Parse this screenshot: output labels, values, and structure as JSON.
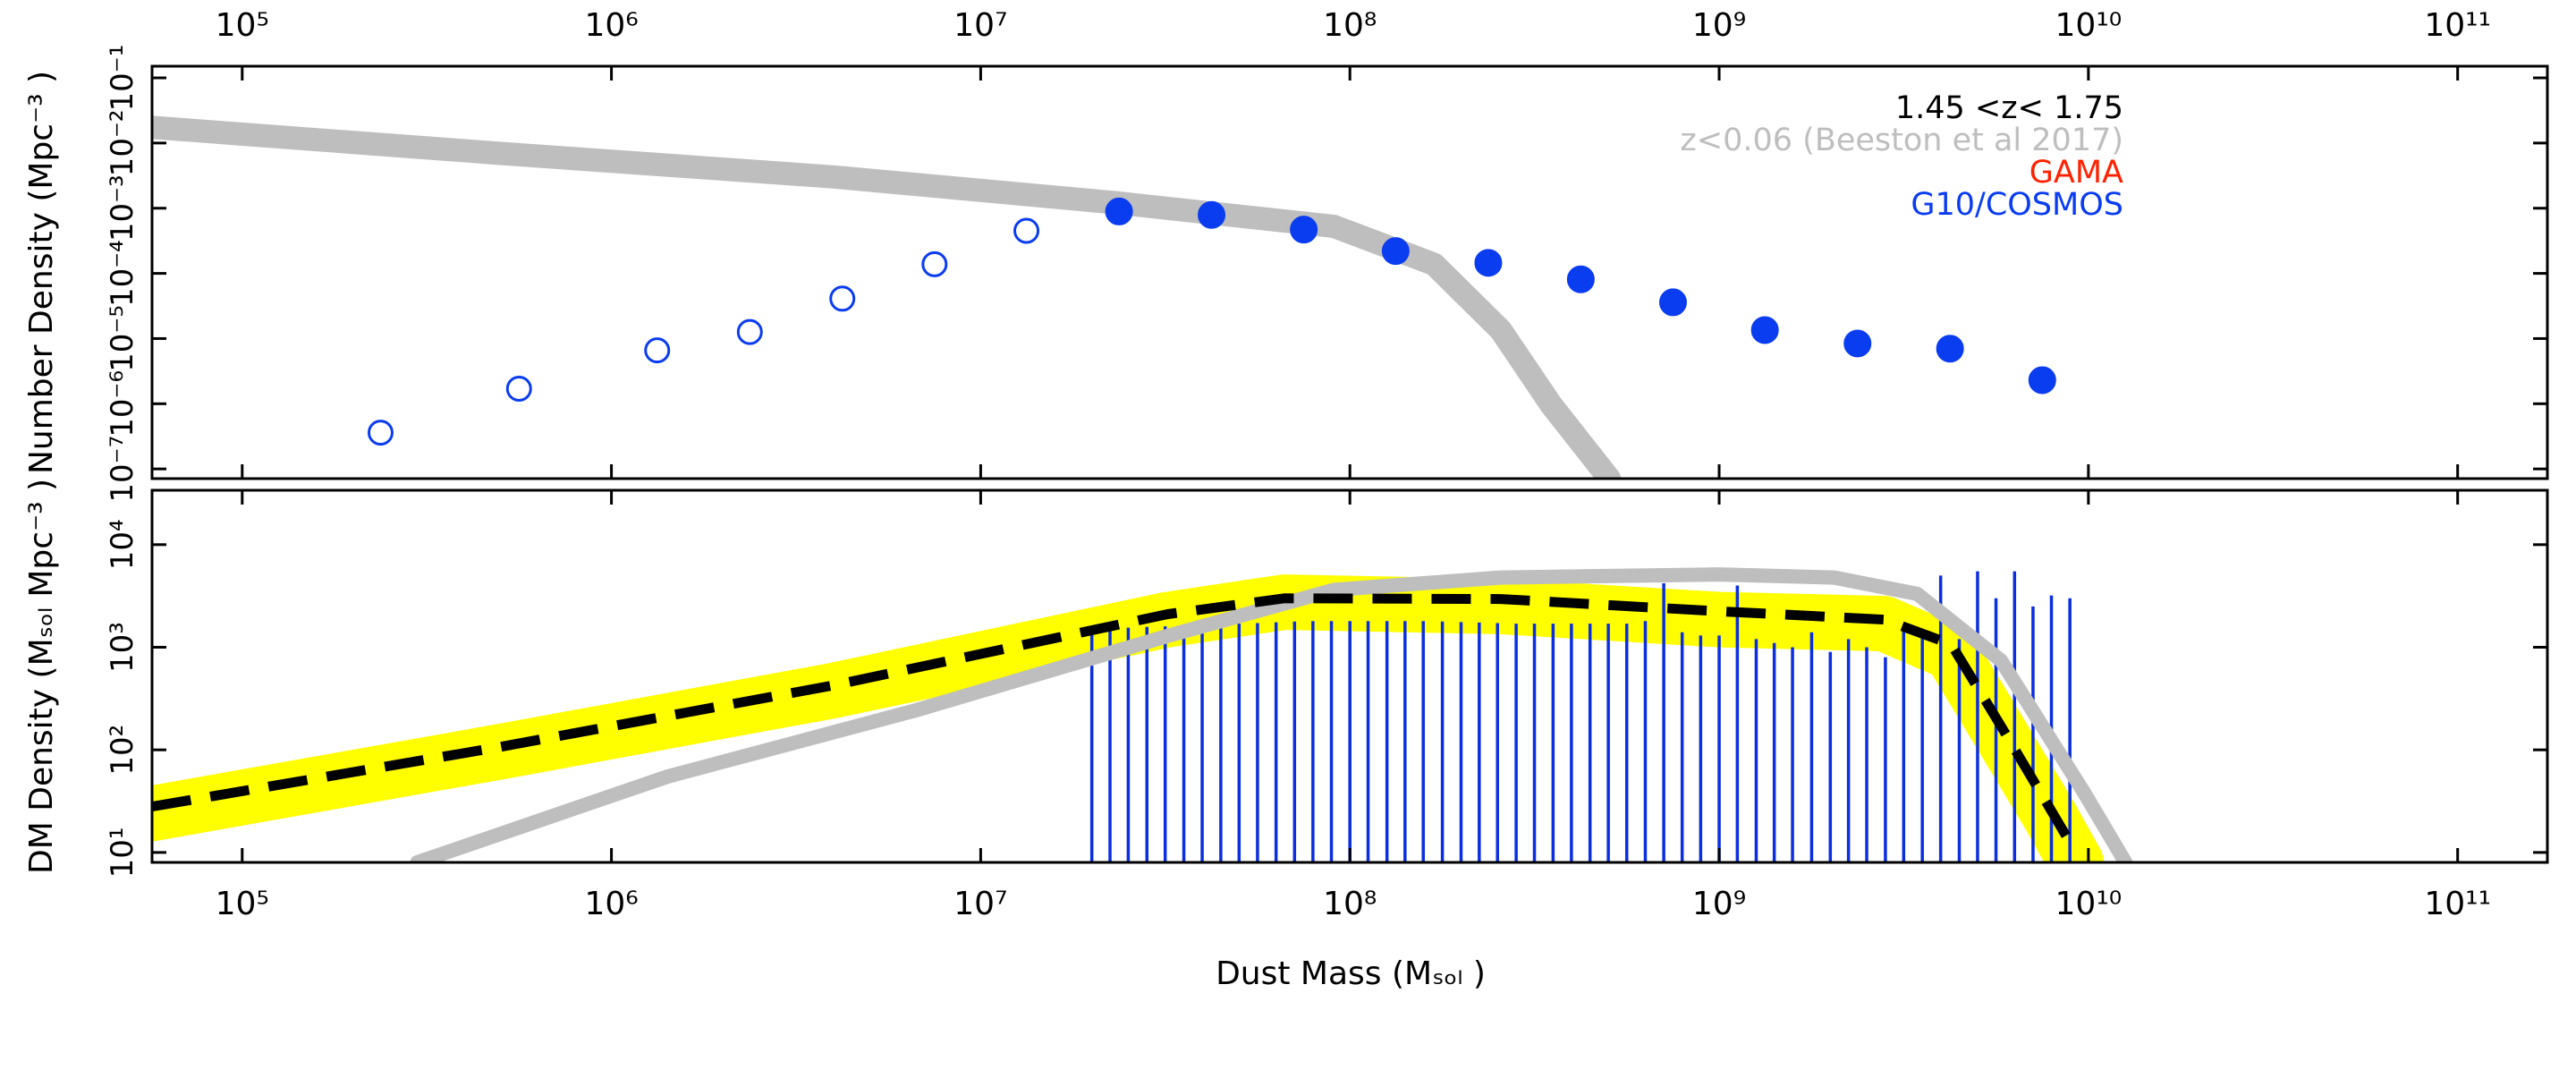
{
  "chart_data": [
    {
      "type": "scatter",
      "ylabel": "Number Density (Mpc⁻³ )",
      "xlog": true,
      "ylog": true,
      "xlim": [
        57000,
        175000000000.0
      ],
      "xticks": [
        {
          "value": 100000.0,
          "label": "10⁵"
        },
        {
          "value": 1000000.0,
          "label": "10⁶"
        },
        {
          "value": 10000000.0,
          "label": "10⁷"
        },
        {
          "value": 100000000.0,
          "label": "10⁸"
        },
        {
          "value": 1000000000.0,
          "label": "10⁹"
        },
        {
          "value": 10000000000.0,
          "label": "10¹⁰"
        },
        {
          "value": 100000000000.0,
          "label": "10¹¹"
        }
      ],
      "ylim": [
        7.1e-08,
        0.151
      ],
      "yticks": [
        {
          "value": 1e-07,
          "label": "10⁻⁷"
        },
        {
          "value": 1e-06,
          "label": "10⁻⁶"
        },
        {
          "value": 1e-05,
          "label": "10⁻⁵"
        },
        {
          "value": 0.0001,
          "label": "10⁻⁴"
        },
        {
          "value": 0.001,
          "label": "10⁻³"
        },
        {
          "value": 0.01,
          "label": "10⁻²"
        },
        {
          "value": 0.1,
          "label": "10⁻¹"
        }
      ],
      "legend_position": "top-right",
      "legend": [
        {
          "text": "1.45 <z< 1.75",
          "color": "#000000"
        },
        {
          "text": "z<0.06 (Beeston et al 2017)",
          "color": "#bebebe"
        },
        {
          "text": "GAMA",
          "color": "#ff2200"
        },
        {
          "text": "G10/COSMOS",
          "color": "#0a3cf0"
        }
      ],
      "series": [
        {
          "type": "line",
          "color": "#bebebe",
          "x": [
            57000,
            501000,
            4010000,
            23700000,
            90600000,
            169000000,
            256000000,
            350000000,
            504000000
          ],
          "values": [
            0.0174,
            0.00692,
            0.00302,
            0.0012,
            0.000525,
            0.000138,
            1.35e-05,
            9.8e-07,
            7.1e-08
          ]
        },
        {
          "type": "points",
          "marker": "open",
          "color": "#0a3cf0",
          "x": [
            237000,
            562000,
            1330000,
            2370000,
            4220000,
            7500000,
            13300000
          ],
          "values": [
            3.6e-07,
            1.7e-06,
            6.6e-06,
            1.26e-05,
            4.1e-05,
            0.000138,
            0.00045
          ]
        },
        {
          "type": "points",
          "marker": "filled",
          "color": "#0a3cf0",
          "x": [
            23700000,
            42200000,
            75000000,
            133000000,
            237000000,
            422000000,
            750000000,
            1330000000,
            2370000000,
            4220000000,
            7500000000
          ],
          "values": [
            0.00089,
            0.00079,
            0.00047,
            0.00022,
            0.000145,
            8.1e-05,
            3.6e-05,
            1.35e-05,
            8.4e-06,
            7e-06,
            2.3e-06
          ]
        }
      ]
    },
    {
      "type": "line",
      "ylabel": "DM Density (Mₛₒₗ Mpc⁻³ )",
      "xlabel": "Dust Mass (Mₛₒₗ )",
      "xlog": true,
      "ylog": true,
      "xlim": [
        57000,
        175000000000.0
      ],
      "xticks": [
        {
          "value": 100000.0,
          "label": "10⁵"
        },
        {
          "value": 1000000.0,
          "label": "10⁶"
        },
        {
          "value": 10000000.0,
          "label": "10⁷"
        },
        {
          "value": 100000000.0,
          "label": "10⁸"
        },
        {
          "value": 1000000000.0,
          "label": "10⁹"
        },
        {
          "value": 10000000000.0,
          "label": "10¹⁰"
        },
        {
          "value": 100000000000.0,
          "label": "10¹¹"
        }
      ],
      "ylim": [
        8.0,
        33900
      ],
      "yticks": [
        {
          "value": 10,
          "label": "10¹"
        },
        {
          "value": 100,
          "label": "10²"
        },
        {
          "value": 1000,
          "label": "10³"
        },
        {
          "value": 10000,
          "label": "10⁴"
        }
      ],
      "series": [
        {
          "type": "band",
          "color": "#ffff00",
          "x": [
            57000,
            501000,
            4010000,
            32100000,
            66400000,
            256000000,
            1000000000,
            2800000000,
            4250000000,
            5800000000,
            7910000000,
            9250000000
          ],
          "values": [
            24,
            96,
            380,
            1860,
            2750,
            2500,
            1860,
            1700,
            890,
            140,
            22,
            8
          ]
        },
        {
          "type": "vlines",
          "color": "#0a2ee0",
          "x": [
            20000000.0,
            22400000.0,
            25100000.0,
            28200000.0,
            31600000.0,
            35500000.0,
            39800000.0,
            44700000.0,
            50100000.0,
            56200000.0,
            63100000.0,
            70800000.0,
            79400000.0,
            89100000.0,
            100000000.0,
            112000000.0,
            126000000.0,
            141000000.0,
            158000000.0,
            178000000.0,
            200000000.0,
            224000000.0,
            251000000.0,
            282000000.0,
            316000000.0,
            355000000.0,
            398000000.0,
            447000000.0,
            501000000.0,
            562000000.0,
            631000000.0,
            708000000.0,
            794000000.0,
            891000000.0,
            1000000000.0,
            1120000000.0,
            1260000000.0,
            1410000000.0,
            1580000000.0,
            1780000000.0,
            2000000000.0,
            2240000000.0,
            2510000000.0,
            2820000000.0,
            3160000000.0,
            3550000000.0,
            3980000000.0,
            4470000000.0,
            5010000000.0,
            5620000000.0,
            6310000000.0,
            7080000000.0,
            7940000000.0,
            8910000000.0
          ],
          "values": [
            1500,
            1520,
            1550,
            1580,
            1600,
            1620,
            1650,
            1680,
            1700,
            1720,
            1750,
            1780,
            1800,
            1800,
            1800,
            1800,
            1800,
            1800,
            1800,
            1780,
            1760,
            1740,
            1720,
            1700,
            1700,
            1700,
            1700,
            1700,
            1700,
            1700,
            1800,
            4200,
            1400,
            1300,
            1300,
            4000,
            1200,
            1100,
            1000,
            1400,
            900,
            1200,
            1000,
            800,
            1500,
            1300,
            5000,
            1200,
            5500,
            3000,
            5500,
            2500,
            3200,
            3000
          ]
        },
        {
          "type": "band",
          "color": "#bebebe",
          "x": [
            298000,
            1420000,
            6730000,
            32100000,
            90600000,
            256000000,
            1000000000,
            2050000000,
            3440000000,
            5800000000,
            9750000000,
            12600000000
          ],
          "values": [
            8,
            55,
            245,
            1290,
            3630,
            4780,
            5130,
            4780,
            3310,
            741,
            38,
            8
          ]
        },
        {
          "type": "dashed",
          "color": "#000000",
          "x": [
            57000,
            501000,
            4010000,
            32100000,
            66400000,
            256000000,
            1000000000,
            2800000000,
            4250000000,
            5800000000,
            7910000000,
            9250000000
          ],
          "values": [
            28,
            107,
            427,
            2100,
            3000,
            2950,
            2240,
            1860,
            1070,
            170,
            26,
            10
          ]
        }
      ]
    }
  ]
}
